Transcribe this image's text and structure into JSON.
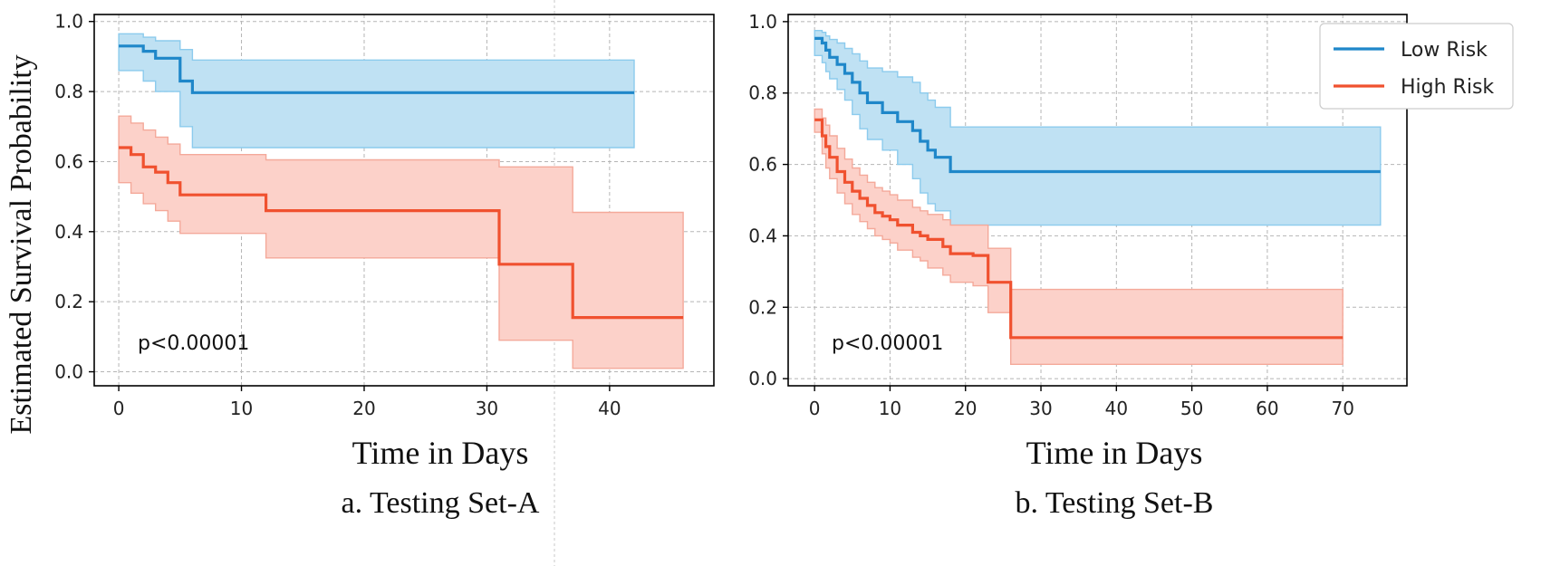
{
  "shared_ylabel": "Estimated Survival Probability",
  "colors": {
    "low": "#1f87c9",
    "low_fill": "#bfe1f3",
    "low_band_edge": "#8ccbed",
    "high": "#f0512f",
    "high_fill": "#fcd1c9",
    "high_band_edge": "#f4a99a"
  },
  "chart_data": [
    {
      "type": "line",
      "subtype": "kaplan-meier-step",
      "caption": "a. Testing Set-A",
      "xlabel": "Time in Days",
      "ylabel": "Estimated Survival Probability",
      "xlim": [
        -2,
        48.5
      ],
      "ylim": [
        -0.04,
        1.02
      ],
      "xticks": [
        0,
        10,
        20,
        30,
        40
      ],
      "yticks": [
        0.0,
        0.2,
        0.4,
        0.6,
        0.8,
        1.0
      ],
      "xtick_labels": [
        "0",
        "10",
        "20",
        "30",
        "40"
      ],
      "ytick_labels": [
        "0.0",
        "0.2",
        "0.4",
        "0.6",
        "0.8",
        "1.0"
      ],
      "grid": true,
      "annotation": "p<0.00001",
      "legend": null,
      "series": [
        {
          "name": "Low Risk",
          "color_key": "low",
          "steps": [
            [
              0,
              0.93
            ],
            [
              2,
              0.915
            ],
            [
              3,
              0.895
            ],
            [
              5,
              0.83
            ],
            [
              6,
              0.797
            ],
            [
              42,
              0.797
            ]
          ],
          "ci": [
            [
              0,
              0.86,
              0.965
            ],
            [
              2,
              0.83,
              0.955
            ],
            [
              3,
              0.8,
              0.945
            ],
            [
              5,
              0.7,
              0.92
            ],
            [
              6,
              0.64,
              0.89
            ],
            [
              42,
              0.64,
              0.89
            ]
          ]
        },
        {
          "name": "High Risk",
          "color_key": "high",
          "steps": [
            [
              0,
              0.64
            ],
            [
              1,
              0.62
            ],
            [
              2,
              0.585
            ],
            [
              3,
              0.57
            ],
            [
              4,
              0.54
            ],
            [
              5,
              0.505
            ],
            [
              12,
              0.46
            ],
            [
              31,
              0.307
            ],
            [
              37,
              0.155
            ],
            [
              46,
              0.155
            ]
          ],
          "ci": [
            [
              0,
              0.54,
              0.73
            ],
            [
              1,
              0.51,
              0.71
            ],
            [
              2,
              0.48,
              0.69
            ],
            [
              3,
              0.46,
              0.67
            ],
            [
              4,
              0.43,
              0.65
            ],
            [
              5,
              0.395,
              0.62
            ],
            [
              12,
              0.325,
              0.605
            ],
            [
              31,
              0.09,
              0.585
            ],
            [
              37,
              0.01,
              0.455
            ],
            [
              46,
              0.01,
              0.455
            ]
          ]
        }
      ]
    },
    {
      "type": "line",
      "subtype": "kaplan-meier-step",
      "caption": "b. Testing Set-B",
      "xlabel": "Time in Days",
      "ylabel": "",
      "xlim": [
        -3.5,
        78.5
      ],
      "ylim": [
        -0.02,
        1.02
      ],
      "xticks": [
        0,
        10,
        20,
        30,
        40,
        50,
        60,
        70
      ],
      "yticks": [
        0.0,
        0.2,
        0.4,
        0.6,
        0.8,
        1.0
      ],
      "xtick_labels": [
        "0",
        "10",
        "20",
        "30",
        "40",
        "50",
        "60",
        "70"
      ],
      "ytick_labels": [
        "0.0",
        "0.2",
        "0.4",
        "0.6",
        "0.8",
        "1.0"
      ],
      "grid": true,
      "annotation": "p<0.00001",
      "legend": {
        "position": "top-right",
        "entries": [
          "Low Risk",
          "High Risk"
        ]
      },
      "series": [
        {
          "name": "Low Risk",
          "color_key": "low",
          "steps": [
            [
              0,
              0.953
            ],
            [
              1,
              0.94
            ],
            [
              1.5,
              0.92
            ],
            [
              2,
              0.9
            ],
            [
              3,
              0.88
            ],
            [
              4,
              0.855
            ],
            [
              5,
              0.83
            ],
            [
              6,
              0.8
            ],
            [
              7,
              0.773
            ],
            [
              9,
              0.745
            ],
            [
              11,
              0.72
            ],
            [
              13,
              0.695
            ],
            [
              14,
              0.665
            ],
            [
              15,
              0.64
            ],
            [
              16,
              0.62
            ],
            [
              18,
              0.58
            ],
            [
              75,
              0.58
            ]
          ],
          "ci": [
            [
              0,
              0.905,
              0.975
            ],
            [
              1,
              0.885,
              0.97
            ],
            [
              1.5,
              0.86,
              0.96
            ],
            [
              2,
              0.84,
              0.95
            ],
            [
              3,
              0.81,
              0.94
            ],
            [
              4,
              0.78,
              0.925
            ],
            [
              5,
              0.74,
              0.91
            ],
            [
              6,
              0.7,
              0.89
            ],
            [
              7,
              0.67,
              0.87
            ],
            [
              9,
              0.64,
              0.86
            ],
            [
              11,
              0.6,
              0.845
            ],
            [
              13,
              0.56,
              0.83
            ],
            [
              14,
              0.52,
              0.8
            ],
            [
              15,
              0.49,
              0.78
            ],
            [
              16,
              0.47,
              0.76
            ],
            [
              18,
              0.43,
              0.705
            ],
            [
              75,
              0.43,
              0.705
            ]
          ]
        },
        {
          "name": "High Risk",
          "color_key": "high",
          "steps": [
            [
              0,
              0.725
            ],
            [
              1,
              0.68
            ],
            [
              1.5,
              0.65
            ],
            [
              2,
              0.62
            ],
            [
              3,
              0.58
            ],
            [
              4,
              0.55
            ],
            [
              5,
              0.525
            ],
            [
              6,
              0.505
            ],
            [
              7,
              0.485
            ],
            [
              8,
              0.465
            ],
            [
              9,
              0.455
            ],
            [
              10,
              0.445
            ],
            [
              11,
              0.43
            ],
            [
              13,
              0.41
            ],
            [
              14,
              0.4
            ],
            [
              15,
              0.39
            ],
            [
              17,
              0.37
            ],
            [
              18,
              0.35
            ],
            [
              21,
              0.345
            ],
            [
              23,
              0.27
            ],
            [
              26,
              0.115
            ],
            [
              70,
              0.115
            ]
          ],
          "ci": [
            [
              0,
              0.69,
              0.755
            ],
            [
              1,
              0.63,
              0.73
            ],
            [
              1.5,
              0.59,
              0.71
            ],
            [
              2,
              0.56,
              0.68
            ],
            [
              3,
              0.52,
              0.645
            ],
            [
              4,
              0.49,
              0.615
            ],
            [
              5,
              0.46,
              0.59
            ],
            [
              6,
              0.44,
              0.57
            ],
            [
              7,
              0.42,
              0.55
            ],
            [
              8,
              0.4,
              0.535
            ],
            [
              9,
              0.39,
              0.525
            ],
            [
              10,
              0.38,
              0.515
            ],
            [
              11,
              0.36,
              0.5
            ],
            [
              13,
              0.34,
              0.48
            ],
            [
              14,
              0.33,
              0.47
            ],
            [
              15,
              0.31,
              0.46
            ],
            [
              17,
              0.29,
              0.445
            ],
            [
              18,
              0.27,
              0.43
            ],
            [
              21,
              0.26,
              0.43
            ],
            [
              23,
              0.185,
              0.365
            ],
            [
              26,
              0.04,
              0.25
            ],
            [
              70,
              0.04,
              0.25
            ]
          ]
        }
      ]
    }
  ]
}
